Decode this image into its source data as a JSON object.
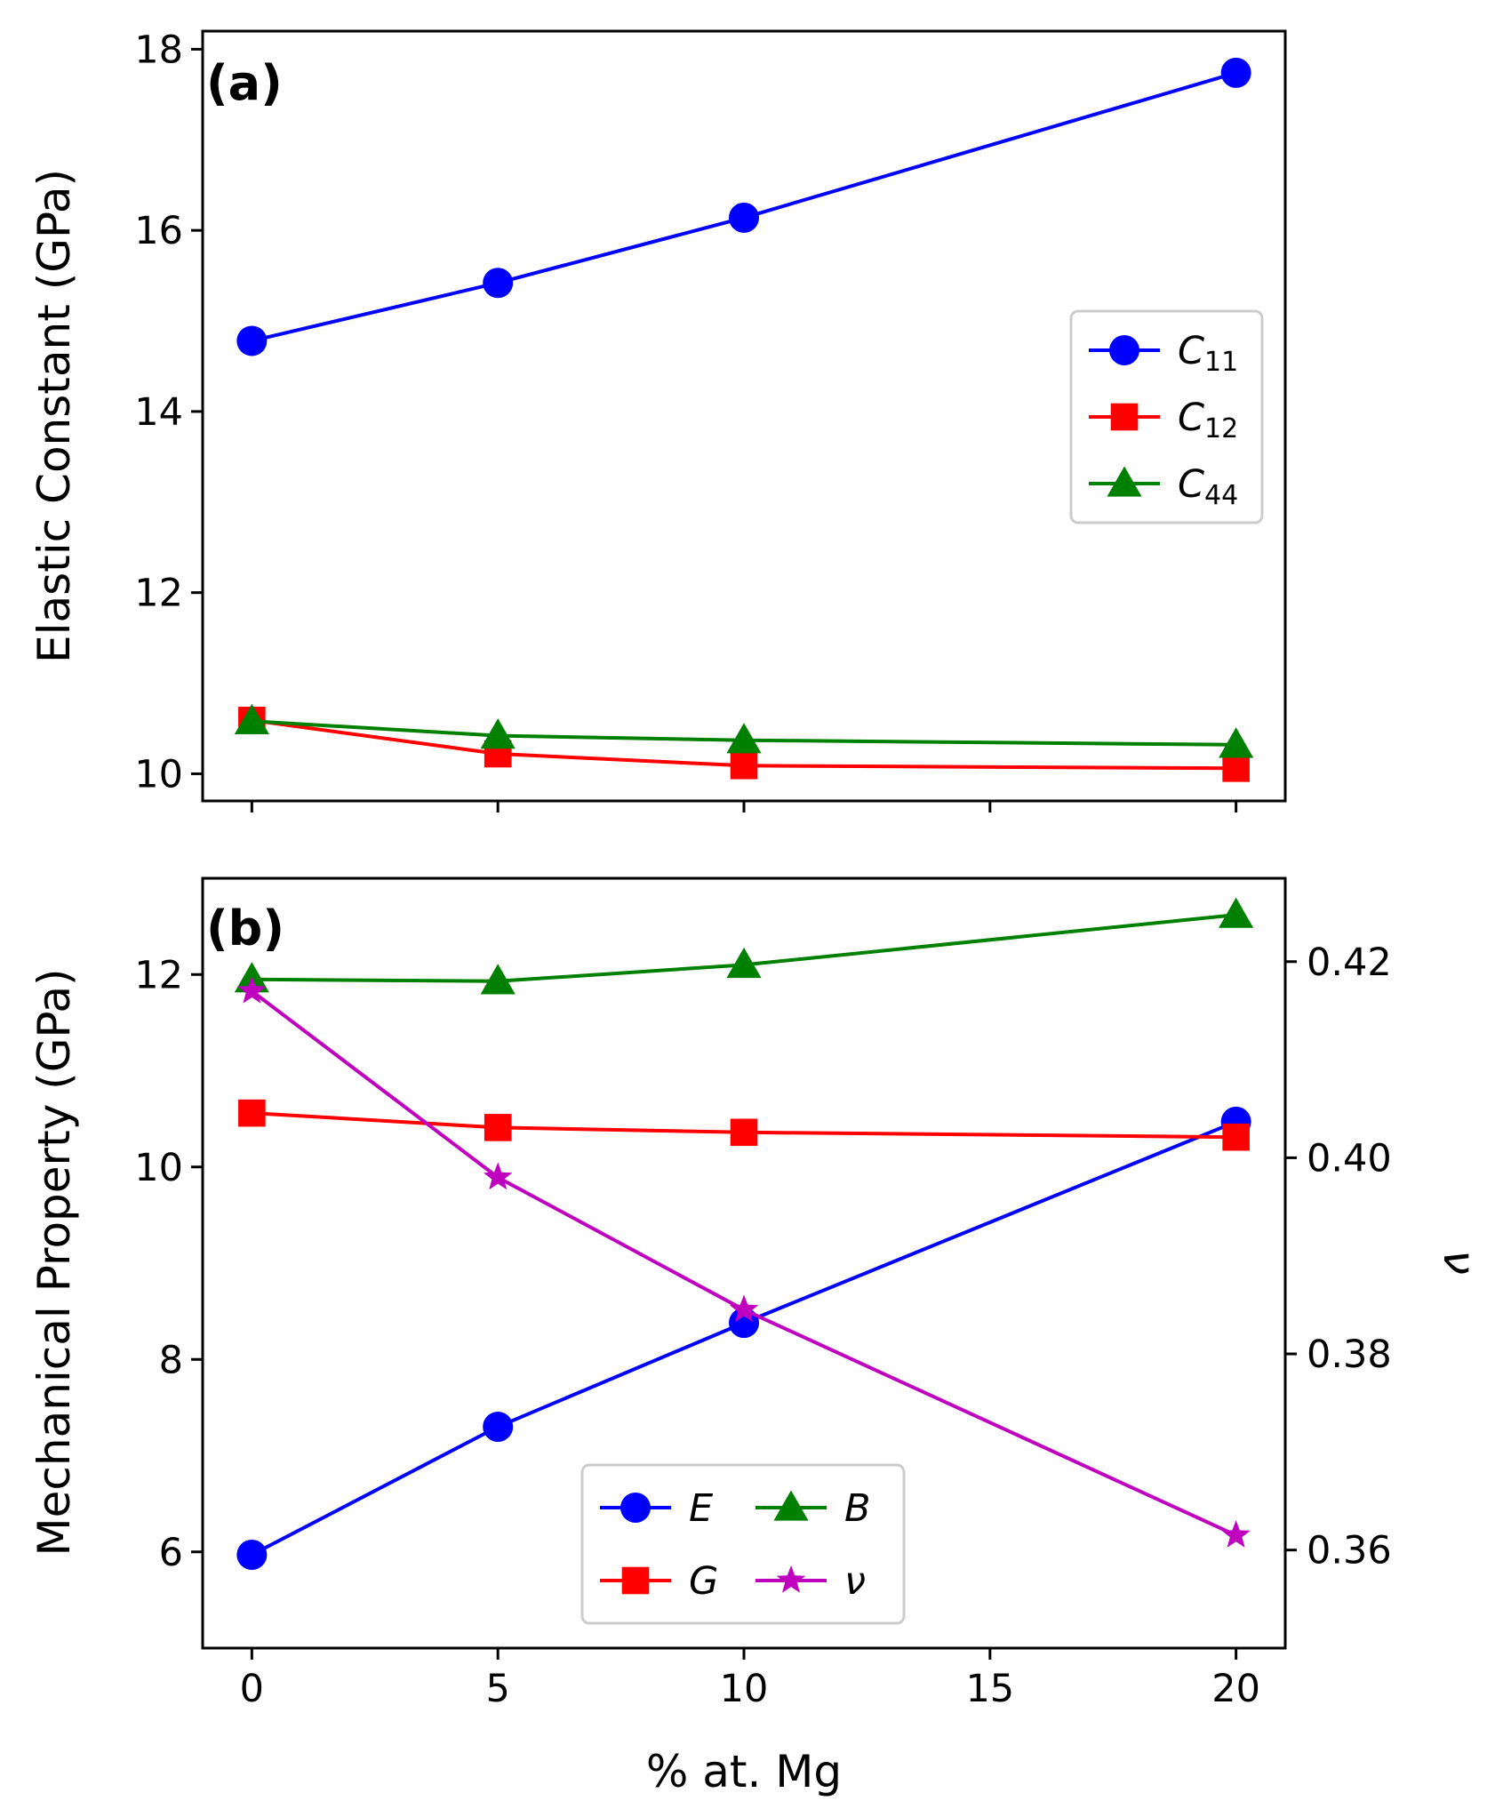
{
  "chart_data": [
    {
      "panel": "(a)",
      "type": "line",
      "xlabel": "",
      "ylabel": "Elastic Constant (GPa)",
      "x": [
        0,
        5,
        10,
        20
      ],
      "xlim": [
        -1,
        21
      ],
      "xticks": [
        0,
        5,
        10,
        15,
        20
      ],
      "ylim": [
        9.7,
        18.2
      ],
      "yticks": [
        10,
        12,
        14,
        16,
        18
      ],
      "grid": false,
      "legend_position": "center-right",
      "series": [
        {
          "name": "C",
          "subscript": "11",
          "color": "#0000ff",
          "marker": "circle",
          "values": [
            14.78,
            15.42,
            16.14,
            17.74
          ]
        },
        {
          "name": "C",
          "subscript": "12",
          "color": "#ff0000",
          "marker": "square",
          "values": [
            10.59,
            10.22,
            10.09,
            10.06
          ]
        },
        {
          "name": "C",
          "subscript": "44",
          "color": "#008000",
          "marker": "triangle",
          "values": [
            10.58,
            10.42,
            10.37,
            10.32
          ]
        }
      ]
    },
    {
      "panel": "(b)",
      "type": "line",
      "xlabel": "% at. Mg",
      "ylabel": "Mechanical Property (GPa)",
      "y2label": "ν",
      "x": [
        0,
        5,
        10,
        20
      ],
      "xlim": [
        -1,
        21
      ],
      "xticks": [
        0,
        5,
        10,
        15,
        20
      ],
      "ylim": [
        5.0,
        13.0
      ],
      "yticks": [
        6,
        8,
        10,
        12
      ],
      "y2lim": [
        0.35,
        0.4285
      ],
      "y2ticks": [
        "0.36",
        "0.38",
        "0.40",
        "0.42"
      ],
      "grid": false,
      "legend_position": "bottom-center",
      "series": [
        {
          "name": "E",
          "axis": "left",
          "color": "#0000ff",
          "marker": "circle",
          "values": [
            5.97,
            7.3,
            8.38,
            10.47
          ]
        },
        {
          "name": "B",
          "axis": "left",
          "color": "#008000",
          "marker": "triangle",
          "values": [
            11.95,
            11.93,
            12.1,
            12.62
          ]
        },
        {
          "name": "G",
          "axis": "left",
          "color": "#ff0000",
          "marker": "square",
          "values": [
            10.56,
            10.41,
            10.36,
            10.31
          ]
        },
        {
          "name": "ν",
          "axis": "right",
          "color": "#bf00bf",
          "marker": "star",
          "values": [
            0.417,
            0.398,
            0.3845,
            0.3615
          ]
        }
      ]
    }
  ]
}
